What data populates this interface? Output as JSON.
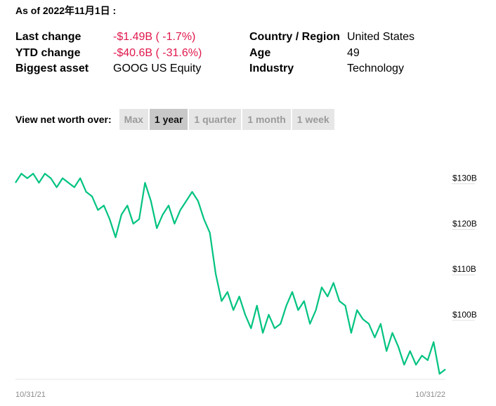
{
  "as_of": "As of 2022年11月1日 :",
  "stats_left": [
    {
      "label": "Last change",
      "value": "-$1.49B ( -1.7%)",
      "negative": true
    },
    {
      "label": "YTD change",
      "value": "-$40.6B ( -31.6%)",
      "negative": true
    },
    {
      "label": "Biggest asset",
      "value": "GOOG US Equity",
      "negative": false
    }
  ],
  "stats_right": [
    {
      "label": "Country / Region",
      "value": "United States"
    },
    {
      "label": "Age",
      "value": "49"
    },
    {
      "label": "Industry",
      "value": "Technology"
    }
  ],
  "range": {
    "label": "View net worth over:",
    "options": [
      "Max",
      "1 year",
      "1 quarter",
      "1 month",
      "1 week"
    ],
    "selected": "1 year"
  },
  "colors": {
    "line": "#00c37f",
    "negative": "#e0174c"
  },
  "chart_data": {
    "type": "line",
    "title": "",
    "xlabel": "",
    "ylabel": "",
    "x_ticks": [
      "10/31/21",
      "10/31/22"
    ],
    "y_ticks": [
      {
        "value": 130,
        "label": "$130B"
      },
      {
        "value": 120,
        "label": "$120B"
      },
      {
        "value": 110,
        "label": "$110B"
      },
      {
        "value": 100,
        "label": "$100B"
      }
    ],
    "ylim": [
      85.8,
      135.2
    ],
    "grid": false,
    "x_range": [
      "2021-10-31",
      "2022-10-31"
    ],
    "series": [
      {
        "x": [
          "2021-10-31",
          "2021-11-05",
          "2021-11-10",
          "2021-11-15",
          "2021-11-20",
          "2021-11-25",
          "2021-11-30",
          "2021-12-05",
          "2021-12-10",
          "2021-12-15",
          "2021-12-20",
          "2021-12-25",
          "2021-12-30",
          "2022-01-04",
          "2022-01-09",
          "2022-01-14",
          "2022-01-19",
          "2022-01-24",
          "2022-01-29",
          "2022-02-03",
          "2022-02-08",
          "2022-02-13",
          "2022-02-18",
          "2022-02-23",
          "2022-02-28",
          "2022-03-05",
          "2022-03-10",
          "2022-03-15",
          "2022-03-20",
          "2022-03-25",
          "2022-03-30",
          "2022-04-04",
          "2022-04-09",
          "2022-04-14",
          "2022-04-19",
          "2022-04-24",
          "2022-04-29",
          "2022-05-04",
          "2022-05-09",
          "2022-05-14",
          "2022-05-19",
          "2022-05-24",
          "2022-05-29",
          "2022-06-03",
          "2022-06-08",
          "2022-06-13",
          "2022-06-18",
          "2022-06-23",
          "2022-06-28",
          "2022-07-03",
          "2022-07-08",
          "2022-07-13",
          "2022-07-18",
          "2022-07-23",
          "2022-07-28",
          "2022-08-02",
          "2022-08-07",
          "2022-08-12",
          "2022-08-17",
          "2022-08-22",
          "2022-08-27",
          "2022-09-01",
          "2022-09-06",
          "2022-09-11",
          "2022-09-16",
          "2022-09-21",
          "2022-09-26",
          "2022-10-01",
          "2022-10-06",
          "2022-10-11",
          "2022-10-16",
          "2022-10-21",
          "2022-10-26",
          "2022-10-31"
        ],
        "values": [
          129,
          131,
          130,
          131,
          129,
          131,
          130,
          128,
          130,
          129,
          128,
          130,
          127,
          126,
          123,
          124,
          121,
          117,
          122,
          124,
          120,
          121,
          129,
          125,
          119,
          122,
          124,
          120,
          123,
          125,
          127,
          125,
          121,
          118,
          109,
          103,
          105,
          101,
          104,
          100,
          97,
          102,
          96,
          100,
          97,
          98,
          102,
          105,
          101,
          103,
          98,
          101,
          106,
          104,
          107,
          103,
          102,
          96,
          101,
          99,
          98,
          95,
          98,
          92,
          96,
          93,
          89,
          92,
          89,
          91,
          90,
          94,
          87,
          88
        ]
      }
    ]
  }
}
